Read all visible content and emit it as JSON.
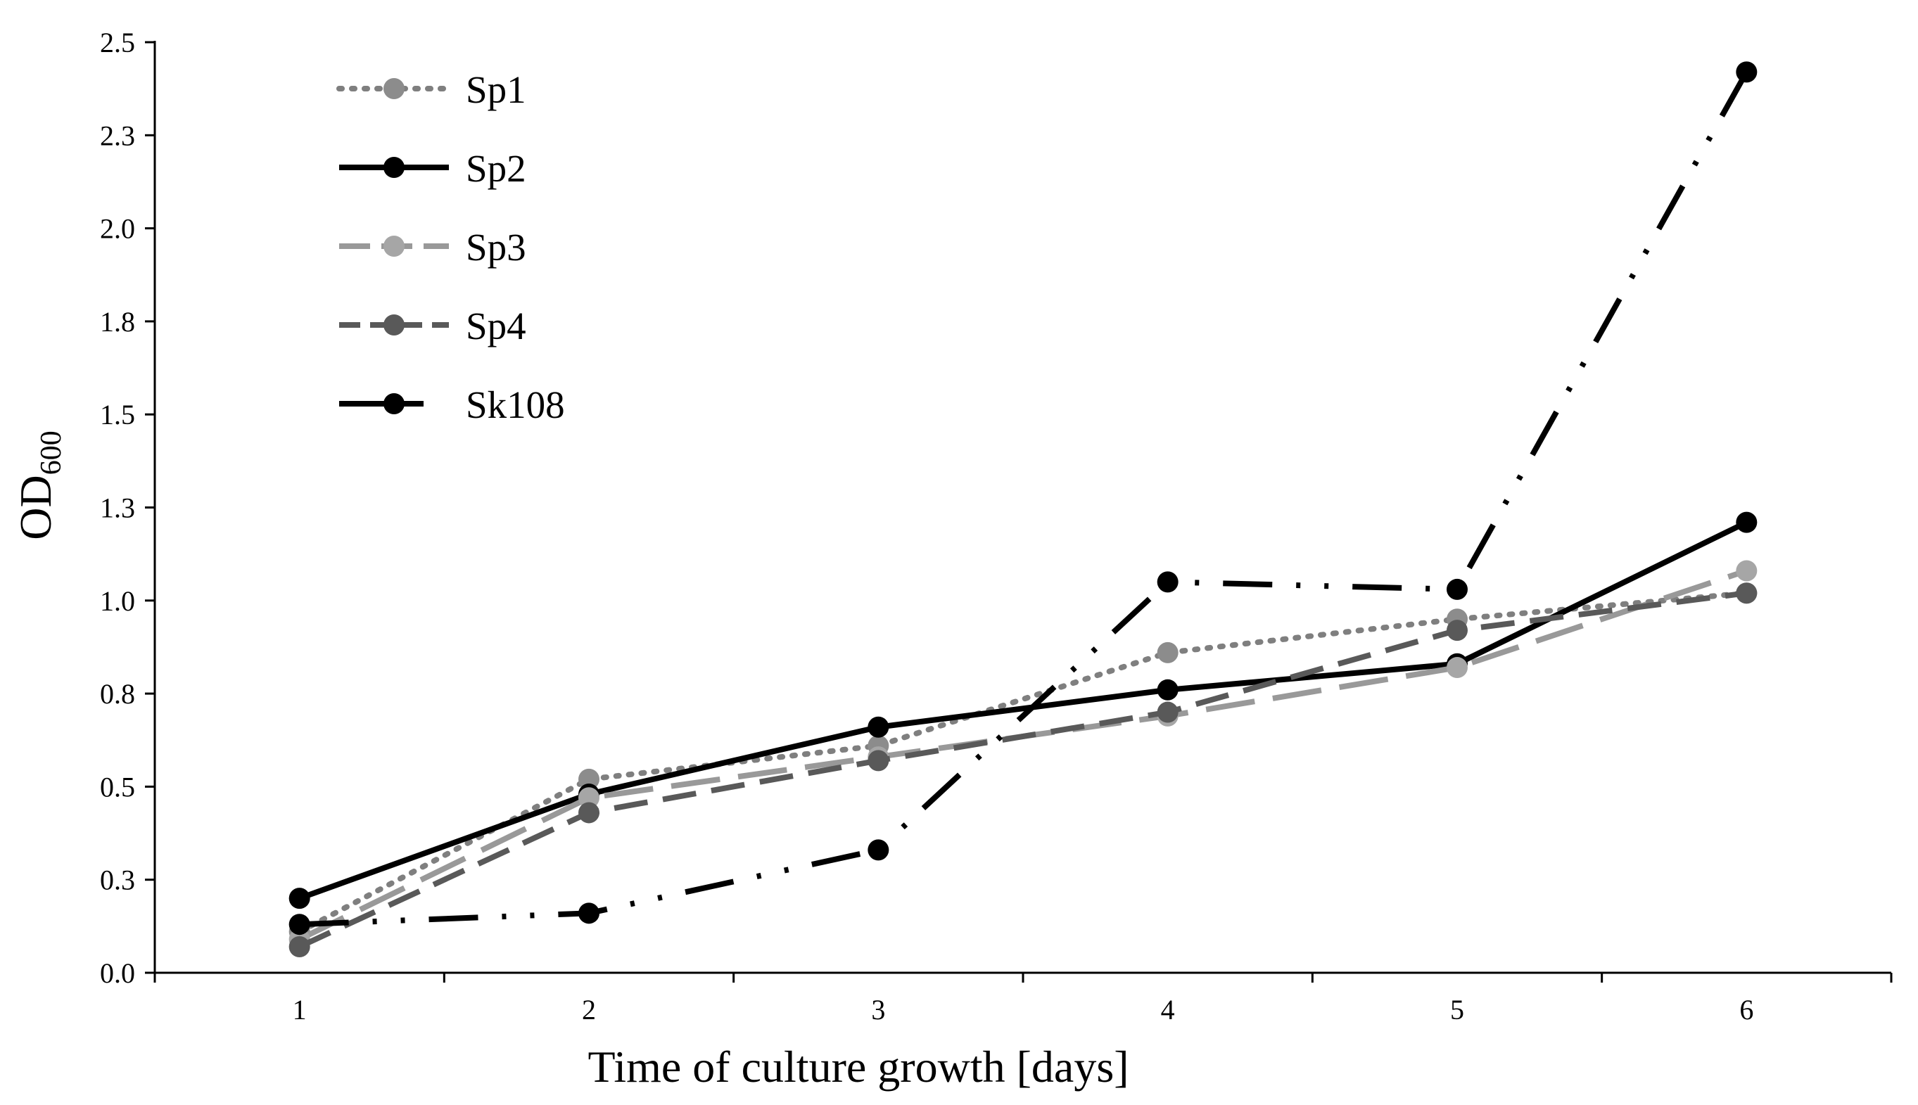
{
  "chart_data": {
    "type": "line",
    "title": "",
    "xlabel": "Time of culture growth [days]",
    "ylabel": {
      "main": "OD",
      "sub": "600"
    },
    "x": [
      1,
      2,
      3,
      4,
      5,
      6
    ],
    "x_tick_labels": [
      "1",
      "2",
      "3",
      "4",
      "5",
      "6"
    ],
    "xlim": [
      0.5,
      6.5
    ],
    "ylim": [
      0,
      2.5
    ],
    "y_ticks": [
      0.0,
      0.25,
      0.5,
      0.75,
      1.0,
      1.25,
      1.5,
      1.75,
      2.0,
      2.25,
      2.5
    ],
    "y_tick_labels": [
      "0.0",
      "0.3",
      "0.5",
      "0.8",
      "1.0",
      "1.3",
      "1.5",
      "1.8",
      "2.0",
      "2.3",
      "2.5"
    ],
    "grid": false,
    "legend_position": "top-left",
    "series": [
      {
        "name": "Sp1",
        "values": [
          0.11,
          0.52,
          0.61,
          0.86,
          0.95,
          1.02
        ],
        "color": "#7f7f7f",
        "style": "dotted",
        "marker_color": "#8c8c8c"
      },
      {
        "name": "Sp2",
        "values": [
          0.2,
          0.48,
          0.66,
          0.76,
          0.83,
          1.21
        ],
        "color": "#000000",
        "style": "solid",
        "marker_color": "#000000"
      },
      {
        "name": "Sp3",
        "values": [
          0.09,
          0.47,
          0.58,
          0.69,
          0.82,
          1.08
        ],
        "color": "#999999",
        "style": "long-dash",
        "marker_color": "#a6a6a6"
      },
      {
        "name": "Sp4",
        "values": [
          0.07,
          0.43,
          0.57,
          0.7,
          0.92,
          1.02
        ],
        "color": "#595959",
        "style": "dash",
        "marker_color": "#595959"
      },
      {
        "name": "Sk108",
        "values": [
          0.13,
          0.16,
          0.33,
          1.05,
          1.03,
          2.42
        ],
        "color": "#000000",
        "style": "dash-dot-dot",
        "marker_color": "#000000"
      }
    ]
  }
}
